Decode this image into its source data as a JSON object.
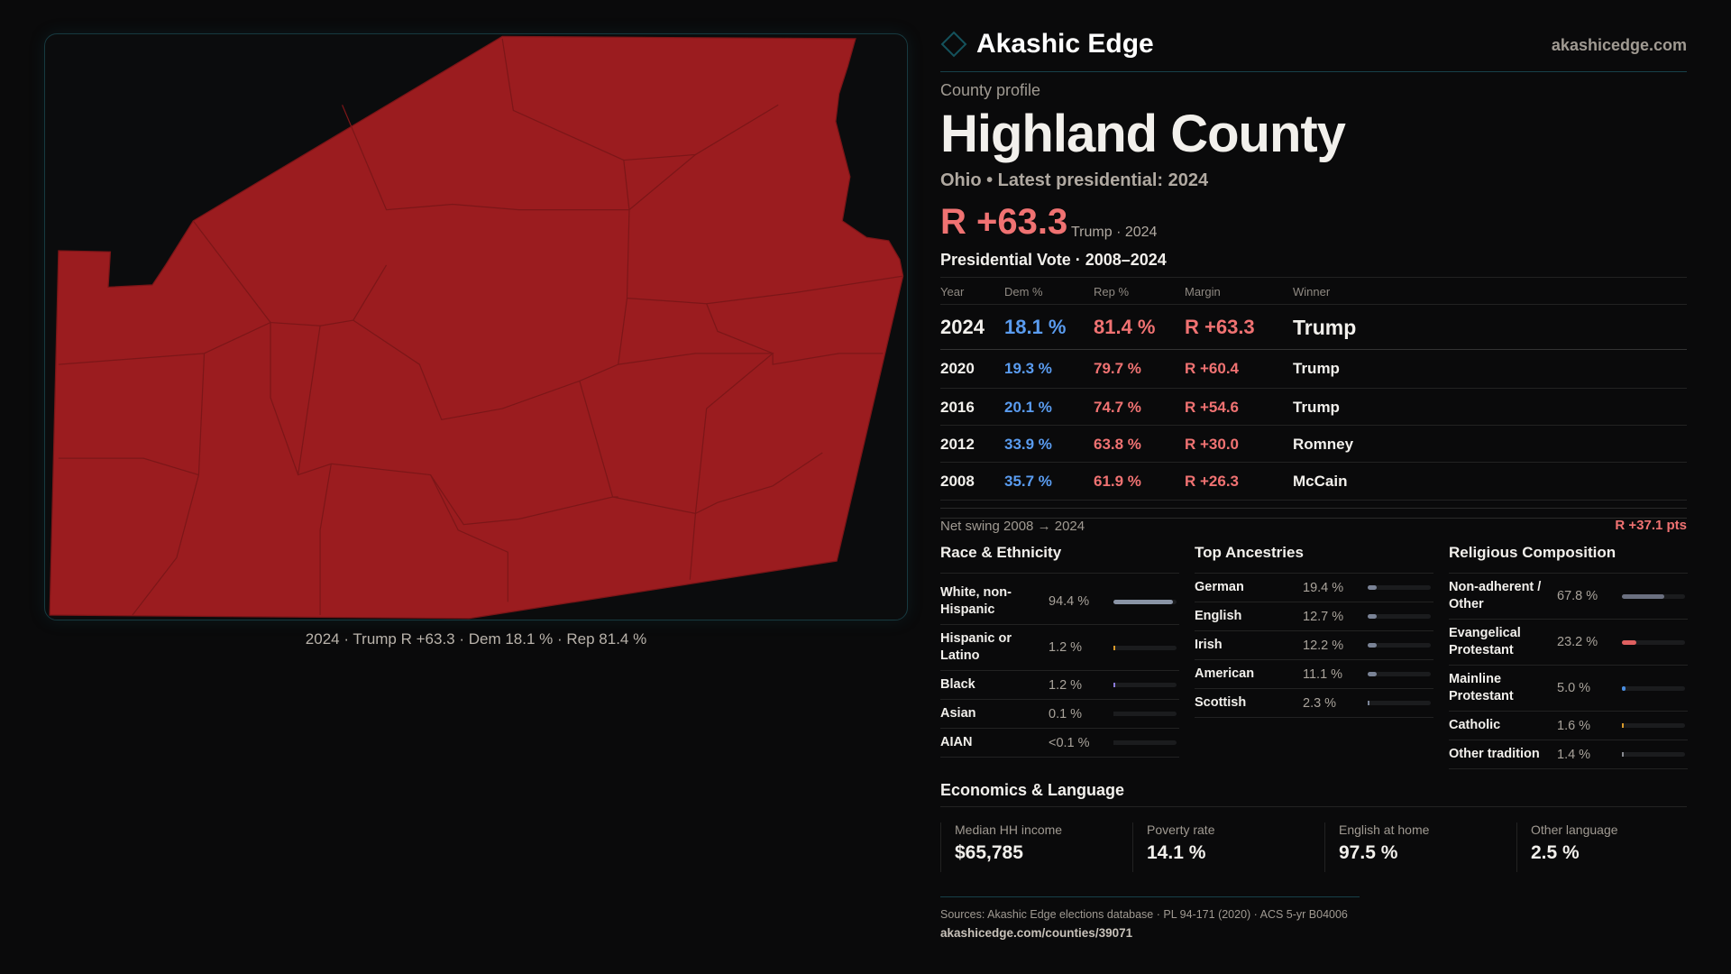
{
  "brand": {
    "name": "Akashic Edge",
    "site": "akashicedge.com",
    "accent": "#17414a"
  },
  "map": {
    "fill": "#9b1c1f",
    "caption": "2024 · Trump R +63.3 · Dem 18.1 % · Rep 81.4 %"
  },
  "profile": {
    "kicker": "County profile",
    "title": "Highland County",
    "subtitle": "Ohio • Latest presidential: 2024",
    "margin": "R +63.3",
    "margin_note": "Trump · 2024"
  },
  "pres": {
    "title": "Presidential Vote · 2008–2024",
    "headers": [
      "Year",
      "Dem %",
      "Rep %",
      "Margin",
      "Winner"
    ],
    "rows": [
      [
        "2024",
        "18.1 %",
        "81.4 %",
        "R +63.3",
        "Trump"
      ],
      [
        "2020",
        "19.3 %",
        "79.7 %",
        "R +60.4",
        "Trump"
      ],
      [
        "2016",
        "20.1 %",
        "74.7 %",
        "R +54.6",
        "Trump"
      ],
      [
        "2012",
        "33.9 %",
        "63.8 %",
        "R +30.0",
        "Romney"
      ],
      [
        "2008",
        "35.7 %",
        "61.9 %",
        "R +26.3",
        "McCain"
      ]
    ],
    "net_swing_label": "Net swing 2008 → 2024",
    "net_swing": "R +37.1 pts"
  },
  "sections": [
    {
      "title": "Race & Ethnicity",
      "items": [
        {
          "label": "White, non-Hispanic",
          "value": "94.4 %",
          "pct": 94.4,
          "color": "#8a94a6"
        },
        {
          "label": "Hispanic or Latino",
          "value": "1.2 %",
          "pct": 1.2,
          "color": "#d99a2b"
        },
        {
          "label": "Black",
          "value": "1.2 %",
          "pct": 1.2,
          "color": "#8a7ad8"
        },
        {
          "label": "Asian",
          "value": "0.1 %",
          "pct": 0.1,
          "color": "#1b1c1e"
        },
        {
          "label": "AIAN",
          "value": "<0.1 %",
          "pct": 0,
          "color": "#1b1c1e"
        }
      ]
    },
    {
      "title": "Top Ancestries",
      "items": [
        {
          "label": "German",
          "value": "19.4 %",
          "pct": 19.4,
          "color": "#7a8396"
        },
        {
          "label": "English",
          "value": "12.7 %",
          "pct": 12.7,
          "color": "#7a8396"
        },
        {
          "label": "Irish",
          "value": "12.2 %",
          "pct": 12.2,
          "color": "#7a8396"
        },
        {
          "label": "American",
          "value": "11.1 %",
          "pct": 11.1,
          "color": "#7a8396"
        },
        {
          "label": "Scottish",
          "value": "2.3 %",
          "pct": 2.3,
          "color": "#7a8396"
        }
      ]
    },
    {
      "title": "Religious Composition",
      "items": [
        {
          "label": "Non-adherent / Other",
          "value": "67.8 %",
          "pct": 67.8,
          "color": "#6b7080"
        },
        {
          "label": "Evangelical Protestant",
          "value": "23.2 %",
          "pct": 23.2,
          "color": "#e06060"
        },
        {
          "label": "Mainline Protestant",
          "value": "5.0 %",
          "pct": 5.0,
          "color": "#4a8ee0"
        },
        {
          "label": "Catholic",
          "value": "1.6 %",
          "pct": 1.6,
          "color": "#d99a2b"
        },
        {
          "label": "Other tradition",
          "value": "1.4 %",
          "pct": 1.4,
          "color": "#888a90"
        }
      ]
    }
  ],
  "econ": {
    "title": "Economics & Language",
    "cards": [
      {
        "label": "Median HH income",
        "value": "$65,785"
      },
      {
        "label": "Poverty rate",
        "value": "14.1 %"
      },
      {
        "label": "English at home",
        "value": "97.5 %"
      },
      {
        "label": "Other language",
        "value": "2.5 %"
      }
    ]
  },
  "footer": {
    "sources": "Sources: Akashic Edge elections database · PL 94-171 (2020) · ACS 5-yr B04006",
    "url": "akashicedge.com/counties/39071"
  }
}
